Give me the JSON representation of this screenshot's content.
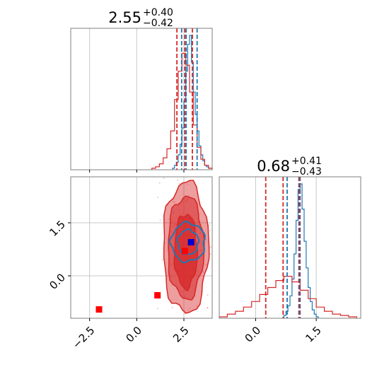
{
  "colors": {
    "blue": "#1f77b4",
    "red": "#d62728",
    "marker_red": "#ff0000",
    "marker_blue": "#0000cc",
    "grid": "#c8c8c8",
    "axis": "#7f7f7f"
  },
  "chart_data": [
    {
      "type": "histogram",
      "panel": "top-left",
      "title_value": "2.55",
      "title_upper": "+0.40",
      "title_lower": "−0.42",
      "xlim": [
        -3.5,
        4.0
      ],
      "grid": true,
      "show_tick_labels": false,
      "quantile_lines": {
        "red": [
          2.13,
          2.55,
          2.95
        ],
        "blue": [
          2.38,
          2.62,
          3.2
        ]
      },
      "series": [
        {
          "color": "blue",
          "bins": [
            1.9,
            2.0,
            2.1,
            2.2,
            2.3,
            2.4,
            2.5,
            2.6,
            2.7,
            2.8,
            2.9,
            3.0,
            3.1,
            3.2,
            3.3,
            3.4,
            3.5,
            3.6,
            3.7,
            3.8,
            4.0
          ],
          "counts": [
            1,
            3,
            5,
            10,
            17,
            28,
            46,
            66,
            84,
            90,
            72,
            52,
            37,
            26,
            16,
            10,
            6,
            3,
            2,
            1
          ]
        },
        {
          "color": "red",
          "bins": [
            0.8,
            1.0,
            1.2,
            1.4,
            1.6,
            1.8,
            2.0,
            2.2,
            2.4,
            2.6,
            2.8,
            3.0,
            3.2,
            3.4,
            3.6,
            3.8,
            4.0
          ],
          "counts": [
            1,
            2,
            4,
            8,
            14,
            26,
            47,
            66,
            78,
            70,
            52,
            30,
            15,
            7,
            3,
            1
          ]
        }
      ]
    },
    {
      "type": "scatter",
      "panel": "bottom-left",
      "xlim": [
        -3.5,
        4.0
      ],
      "ylim": [
        -1.2,
        2.8
      ],
      "xticks": [
        "−2.5",
        "0.0",
        "2.5"
      ],
      "xtick_values": [
        -2.5,
        0.0,
        2.5
      ],
      "yticks": [
        "0.0",
        "1.5"
      ],
      "ytick_values": [
        0.0,
        1.5
      ],
      "grid": true,
      "contours_red": [
        {
          "cx": 2.6,
          "cy": 0.8,
          "rx": 1.2,
          "ry": 1.85,
          "alpha": 0.45
        },
        {
          "cx": 2.6,
          "cy": 0.8,
          "rx": 0.95,
          "ry": 1.45,
          "alpha": 0.55
        },
        {
          "cx": 2.6,
          "cy": 0.7,
          "rx": 0.6,
          "ry": 1.05,
          "alpha": 0.75
        }
      ],
      "contours_blue": [
        {
          "cx": 2.72,
          "cy": 0.95,
          "rx": 0.9,
          "ry": 0.55
        },
        {
          "cx": 2.72,
          "cy": 0.95,
          "rx": 0.55,
          "ry": 0.35
        }
      ],
      "markers": [
        {
          "x": -2.0,
          "y": -0.95,
          "color": "marker_red"
        },
        {
          "x": 1.1,
          "y": -0.55,
          "color": "marker_red"
        },
        {
          "x": 2.55,
          "y": 0.7,
          "color": "marker_red"
        },
        {
          "x": 2.88,
          "y": 0.95,
          "color": "marker_blue"
        }
      ]
    },
    {
      "type": "histogram",
      "panel": "bottom-right",
      "title_value": "0.68",
      "title_upper": "+0.41",
      "title_lower": "−0.43",
      "xlim": [
        -0.9,
        2.6
      ],
      "xticks": [
        "0.0",
        "1.5"
      ],
      "xtick_values": [
        0.0,
        1.5
      ],
      "grid": true,
      "quantile_lines": {
        "red": [
          0.25,
          0.68,
          1.09
        ],
        "blue": [
          0.78,
          1.07,
          1.1
        ]
      },
      "series": [
        {
          "color": "blue",
          "bins": [
            0.7,
            0.75,
            0.8,
            0.85,
            0.9,
            0.95,
            1.0,
            1.05,
            1.1,
            1.15,
            1.2,
            1.25,
            1.3,
            1.35,
            1.4,
            1.45,
            1.5,
            1.55
          ],
          "counts": [
            2,
            5,
            9,
            16,
            28,
            46,
            70,
            92,
            96,
            78,
            55,
            36,
            22,
            12,
            6,
            3,
            1
          ]
        },
        {
          "color": "red",
          "bins": [
            -0.9,
            -0.7,
            -0.5,
            -0.3,
            -0.1,
            0.1,
            0.3,
            0.5,
            0.7,
            0.9,
            1.1,
            1.3,
            1.5,
            1.7,
            1.9,
            2.1,
            2.3,
            2.5
          ],
          "counts": [
            1,
            3,
            5,
            8,
            12,
            17,
            22,
            27,
            30,
            26,
            20,
            14,
            8,
            5,
            3,
            2,
            1
          ]
        }
      ]
    }
  ]
}
